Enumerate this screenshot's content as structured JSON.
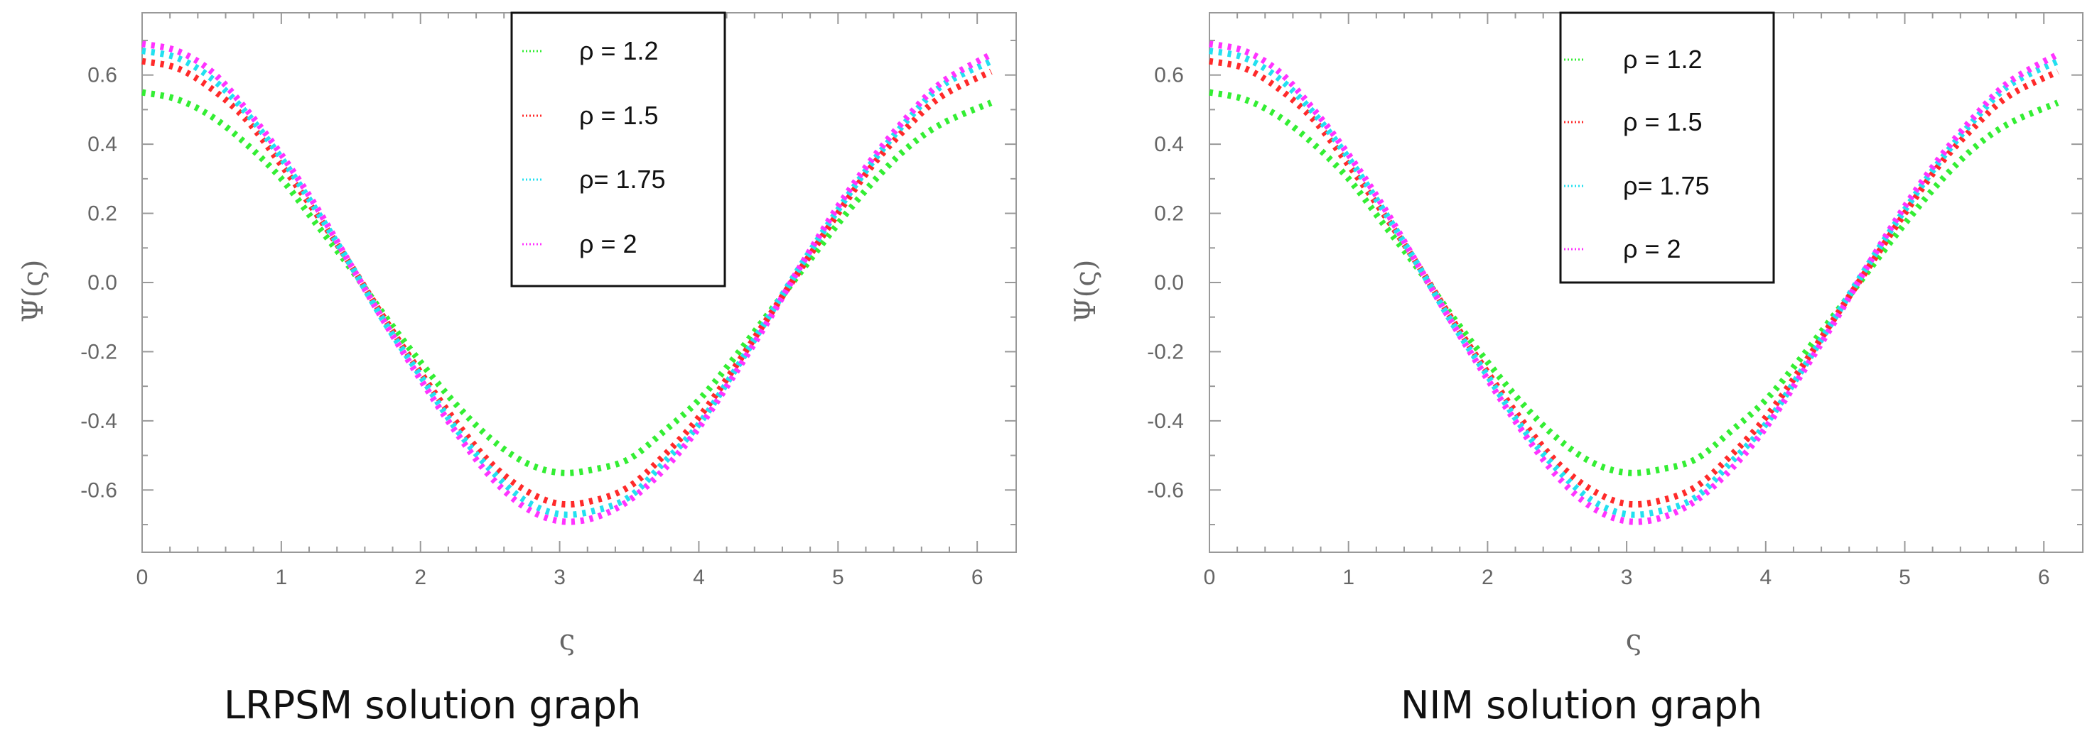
{
  "chart_data": [
    {
      "type": "line",
      "title": "LRPSM solution graph",
      "xlabel": "ς",
      "ylabel": "Ψ(ς)",
      "xlim": [
        0,
        6.28
      ],
      "ylim": [
        -0.78,
        0.78
      ],
      "x_ticks": [
        "0",
        "1",
        "2",
        "3",
        "4",
        "5",
        "6"
      ],
      "y_ticks": [
        "0.6",
        "0.4",
        "0.2",
        "0.0",
        "-0.2",
        "-0.4",
        "-0.6"
      ],
      "x": [
        0,
        0.25,
        0.5,
        0.75,
        1,
        1.25,
        1.5,
        1.75,
        2,
        2.25,
        2.5,
        2.75,
        3,
        3.25,
        3.5,
        3.75,
        4,
        4.25,
        4.5,
        4.75,
        5,
        5.25,
        5.5,
        5.75,
        6.1
      ],
      "series": [
        {
          "name": "ρ = 1.2",
          "color": "#33ee33",
          "values": [
            0.55,
            0.53,
            0.48,
            0.4,
            0.3,
            0.17,
            0.04,
            -0.1,
            -0.23,
            -0.35,
            -0.45,
            -0.52,
            -0.55,
            -0.54,
            -0.51,
            -0.43,
            -0.34,
            -0.22,
            -0.09,
            0.04,
            0.17,
            0.29,
            0.39,
            0.46,
            0.52
          ]
        },
        {
          "name": "ρ = 1.5",
          "color": "#ff2a2a",
          "values": [
            0.64,
            0.62,
            0.56,
            0.47,
            0.34,
            0.2,
            0.05,
            -0.11,
            -0.26,
            -0.4,
            -0.52,
            -0.6,
            -0.64,
            -0.63,
            -0.59,
            -0.5,
            -0.39,
            -0.25,
            -0.1,
            0.05,
            0.2,
            0.34,
            0.45,
            0.54,
            0.61
          ]
        },
        {
          "name": "ρ= 1.75",
          "color": "#22e0f0",
          "values": [
            0.67,
            0.65,
            0.59,
            0.49,
            0.36,
            0.21,
            0.05,
            -0.12,
            -0.27,
            -0.42,
            -0.54,
            -0.63,
            -0.67,
            -0.66,
            -0.62,
            -0.52,
            -0.41,
            -0.26,
            -0.1,
            0.06,
            0.21,
            0.35,
            0.47,
            0.57,
            0.64
          ]
        },
        {
          "name": "ρ = 2",
          "color": "#ff33ff",
          "values": [
            0.69,
            0.67,
            0.61,
            0.5,
            0.37,
            0.22,
            0.05,
            -0.12,
            -0.28,
            -0.43,
            -0.56,
            -0.65,
            -0.69,
            -0.68,
            -0.63,
            -0.54,
            -0.42,
            -0.27,
            -0.11,
            0.06,
            0.22,
            0.36,
            0.48,
            0.58,
            0.66
          ]
        }
      ]
    },
    {
      "type": "line",
      "title": "NIM solution graph",
      "xlabel": "ς",
      "ylabel": "Ψ(ς)",
      "xlim": [
        0,
        6.28
      ],
      "ylim": [
        -0.78,
        0.78
      ],
      "x_ticks": [
        "0",
        "1",
        "2",
        "3",
        "4",
        "5",
        "6"
      ],
      "y_ticks": [
        "0.6",
        "0.4",
        "0.2",
        "0.0",
        "-0.2",
        "-0.4",
        "-0.6"
      ],
      "x": [
        0,
        0.25,
        0.5,
        0.75,
        1,
        1.25,
        1.5,
        1.75,
        2,
        2.25,
        2.5,
        2.75,
        3,
        3.25,
        3.5,
        3.75,
        4,
        4.25,
        4.5,
        4.75,
        5,
        5.25,
        5.5,
        5.75,
        6.1
      ],
      "series": [
        {
          "name": "ρ = 1.2",
          "color": "#33ee33",
          "values": [
            0.55,
            0.53,
            0.48,
            0.4,
            0.3,
            0.17,
            0.04,
            -0.1,
            -0.23,
            -0.35,
            -0.45,
            -0.52,
            -0.55,
            -0.54,
            -0.51,
            -0.43,
            -0.34,
            -0.22,
            -0.09,
            0.04,
            0.17,
            0.29,
            0.39,
            0.46,
            0.52
          ]
        },
        {
          "name": "ρ = 1.5",
          "color": "#ff2a2a",
          "values": [
            0.64,
            0.62,
            0.56,
            0.47,
            0.34,
            0.2,
            0.05,
            -0.11,
            -0.26,
            -0.4,
            -0.52,
            -0.6,
            -0.64,
            -0.63,
            -0.59,
            -0.5,
            -0.39,
            -0.25,
            -0.1,
            0.05,
            0.2,
            0.34,
            0.45,
            0.54,
            0.61
          ]
        },
        {
          "name": "ρ= 1.75",
          "color": "#22e0f0",
          "values": [
            0.67,
            0.65,
            0.59,
            0.49,
            0.36,
            0.21,
            0.05,
            -0.12,
            -0.27,
            -0.42,
            -0.54,
            -0.63,
            -0.67,
            -0.66,
            -0.62,
            -0.52,
            -0.41,
            -0.26,
            -0.1,
            0.06,
            0.21,
            0.35,
            0.47,
            0.57,
            0.64
          ]
        },
        {
          "name": "ρ = 2",
          "color": "#ff33ff",
          "values": [
            0.69,
            0.67,
            0.61,
            0.5,
            0.37,
            0.22,
            0.05,
            -0.12,
            -0.28,
            -0.43,
            -0.56,
            -0.65,
            -0.69,
            -0.68,
            -0.63,
            -0.54,
            -0.42,
            -0.27,
            -0.11,
            0.06,
            0.22,
            0.36,
            0.48,
            0.58,
            0.66
          ]
        }
      ]
    }
  ]
}
